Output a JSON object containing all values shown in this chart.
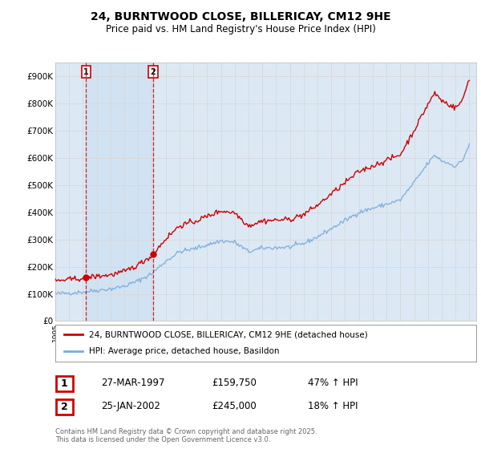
{
  "title": "24, BURNTWOOD CLOSE, BILLERICAY, CM12 9HE",
  "subtitle": "Price paid vs. HM Land Registry's House Price Index (HPI)",
  "legend_line1": "24, BURNTWOOD CLOSE, BILLERICAY, CM12 9HE (detached house)",
  "legend_line2": "HPI: Average price, detached house, Basildon",
  "footnote": "Contains HM Land Registry data © Crown copyright and database right 2025.\nThis data is licensed under the Open Government Licence v3.0.",
  "sale1_date": "27-MAR-1997",
  "sale1_price": 159750,
  "sale1_year": 1997.23,
  "sale1_label": "1",
  "sale1_hpi": "47% ↑ HPI",
  "sale2_date": "25-JAN-2002",
  "sale2_price": 245000,
  "sale2_year": 2002.07,
  "sale2_label": "2",
  "sale2_hpi": "18% ↑ HPI",
  "ylim_min": 0,
  "ylim_max": 950000,
  "xlim_min": 1995,
  "xlim_max": 2025.5,
  "background_color": "#ffffff",
  "plot_bg_color": "#dce9f5",
  "shade_color": "#c8ddf0",
  "grid_color": "#d8d8d8",
  "hpi_line_color": "#7aaddb",
  "price_line_color": "#cc0000",
  "sale_marker_color": "#cc0000",
  "sale_vline_color": "#cc0000",
  "annotation_box_color": "#cc0000"
}
